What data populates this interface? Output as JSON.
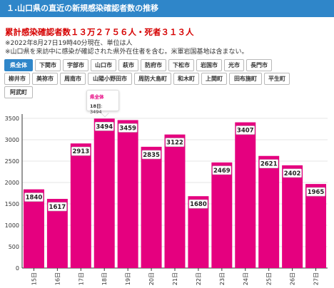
{
  "header": {
    "title": "１.山口県の直近の新規感染確認者数の推移"
  },
  "summary": {
    "headline": "累計感染確認者数１３万２７５６人・死者３１３人",
    "note1": "※2022年8月27日19時40分現在、単位は人",
    "note2": "※山口県を来訪中に感染が確認された県外在住者を含む。米軍岩国基地は含まない。"
  },
  "filters": {
    "row1": [
      "県全体",
      "下関市",
      "宇部市",
      "山口市",
      "萩市",
      "防府市",
      "下松市",
      "岩国市",
      "光市",
      "長門市"
    ],
    "row2": [
      "柳井市",
      "美祢市",
      "周南市",
      "山陽小野田市",
      "周防大島町",
      "和木町",
      "上関町",
      "田布施町",
      "平生町"
    ],
    "row3": [
      "阿武町"
    ],
    "active": "県全体"
  },
  "tooltip": {
    "title": "県全体",
    "label": "18日",
    "value": "3494"
  },
  "colors": {
    "bar": "#e5007f",
    "header": "#2f86c9",
    "headline": "#d60000"
  },
  "chart_data": {
    "type": "bar",
    "categories": [
      "15日",
      "16日",
      "17日",
      "18日",
      "19日",
      "20日",
      "21日",
      "22日",
      "23日",
      "24日",
      "25日",
      "26日",
      "27日"
    ],
    "values": [
      1840,
      1617,
      2913,
      3494,
      3459,
      2835,
      3122,
      1680,
      2469,
      3407,
      2621,
      2402,
      1965
    ],
    "ylim": [
      0,
      3600
    ],
    "yticks": [
      0,
      500,
      1000,
      1500,
      2000,
      2500,
      3000,
      3500
    ],
    "grid": true,
    "data_labels": true
  }
}
